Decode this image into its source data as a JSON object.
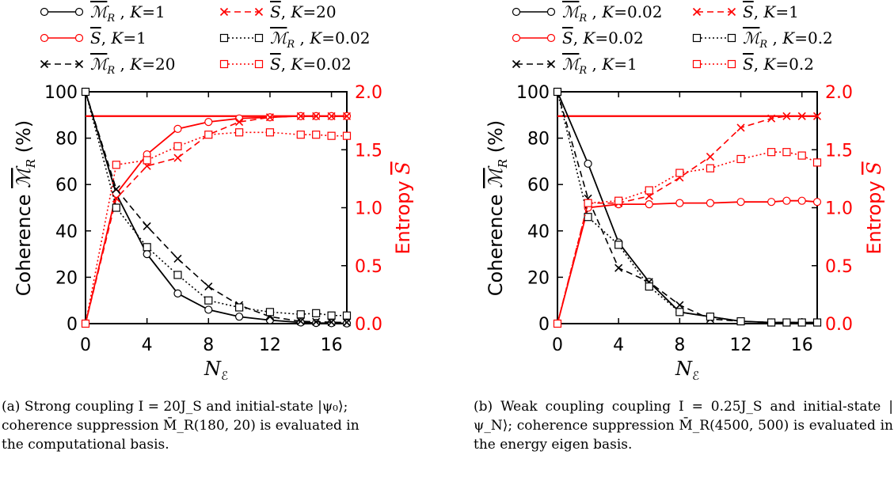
{
  "colors": {
    "black": "#000000",
    "red": "#ff0000"
  },
  "panels": [
    {
      "id": "a",
      "axes": {
        "xlabel": "N_ℰ",
        "ylabel_left_prefix": "Coherence ",
        "ylabel_left_symbol": "M̄_R",
        "ylabel_left_suffix": "  (%)",
        "ylabel_right_prefix": "Entropy ",
        "ylabel_right_symbol": "S̄",
        "xlim": [
          0,
          17
        ],
        "ylim_left": [
          0,
          100
        ],
        "ylim_right": [
          0,
          2.0
        ],
        "xticks": [
          "0",
          "4",
          "8",
          "12",
          "16"
        ],
        "yticks_left": [
          "0",
          "20",
          "40",
          "60",
          "80",
          "100"
        ],
        "yticks_right": [
          "0.0",
          "0.5",
          "1.0",
          "1.5",
          "2.0"
        ]
      },
      "legend": [
        {
          "symbol": "M̄",
          "sub": "R",
          "sep": ", ",
          "klabel": "K",
          "kval": "1"
        },
        {
          "symbol": "S̄",
          "sub": "",
          "sep": ", ",
          "klabel": "K",
          "kval": "1"
        },
        {
          "symbol": "M̄",
          "sub": "R",
          "sep": ", ",
          "klabel": "K",
          "kval": "20"
        },
        {
          "symbol": "S̄",
          "sub": "",
          "sep": ", ",
          "klabel": "K",
          "kval": "20"
        },
        {
          "symbol": "M̄",
          "sub": "R",
          "sep": ", ",
          "klabel": "K",
          "kval": "0.02"
        },
        {
          "symbol": "S̄",
          "sub": "",
          "sep": ", ",
          "klabel": "K",
          "kval": "0.02"
        }
      ],
      "caption": {
        "label": "(a)",
        "text": "Strong coupling I = 20J_S and initial-state |ψ₀⟩; coherence suppression M̄_R(180, 20) is evaluated in the computational basis."
      }
    },
    {
      "id": "b",
      "axes": {
        "xlabel": "N_ℰ",
        "ylabel_left_prefix": "Coherence ",
        "ylabel_left_symbol": "M̄_R",
        "ylabel_left_suffix": "  (%)",
        "ylabel_right_prefix": "Entropy ",
        "ylabel_right_symbol": "S̄",
        "xlim": [
          0,
          17
        ],
        "ylim_left": [
          0,
          100
        ],
        "ylim_right": [
          0,
          2.0
        ],
        "xticks": [
          "0",
          "4",
          "8",
          "12",
          "16"
        ],
        "yticks_left": [
          "0",
          "20",
          "40",
          "60",
          "80",
          "100"
        ],
        "yticks_right": [
          "0.0",
          "0.5",
          "1.0",
          "1.5",
          "2.0"
        ]
      },
      "legend": [
        {
          "symbol": "M̄",
          "sub": "R",
          "sep": ", ",
          "klabel": "K",
          "kval": "0.02"
        },
        {
          "symbol": "S̄",
          "sub": "",
          "sep": ", ",
          "klabel": "K",
          "kval": "0.02"
        },
        {
          "symbol": "M̄",
          "sub": "R",
          "sep": ", ",
          "klabel": "K",
          "kval": "1"
        },
        {
          "symbol": "S̄",
          "sub": "",
          "sep": ", ",
          "klabel": "K",
          "kval": "1"
        },
        {
          "symbol": "M̄",
          "sub": "R",
          "sep": ", ",
          "klabel": "K",
          "kval": "0.2"
        },
        {
          "symbol": "S̄",
          "sub": "",
          "sep": ", ",
          "klabel": "K",
          "kval": "0.2"
        }
      ],
      "caption": {
        "label": "(b)",
        "text": "Weak coupling coupling I = 0.25J_S and initial-state |ψ_N⟩; coherence suppression M̄_R(4500, 500) is evaluated in the energy eigen basis."
      }
    }
  ],
  "chart_data": [
    {
      "type": "line",
      "x": [
        0,
        2,
        4,
        6,
        8,
        10,
        12,
        14,
        15,
        16,
        17
      ],
      "series": [
        {
          "name": "M̄_R, K=1",
          "axis": "left",
          "color": "black",
          "dash": "solid",
          "marker": "circle",
          "values": [
            100,
            56,
            30,
            13,
            6,
            3,
            1.5,
            0.5,
            0.3,
            0.2,
            0.1
          ]
        },
        {
          "name": "S̄, K=1",
          "axis": "right",
          "color": "red",
          "dash": "solid",
          "marker": "circle",
          "values": [
            0,
            1.12,
            1.46,
            1.68,
            1.74,
            1.77,
            1.78,
            1.79,
            1.79,
            1.79,
            1.79
          ]
        },
        {
          "name": "M̄_R, K=20",
          "axis": "left",
          "color": "black",
          "dash": "dashed",
          "marker": "x",
          "values": [
            100,
            58,
            42,
            28,
            16,
            8,
            3,
            1,
            0.8,
            0.6,
            0.5
          ]
        },
        {
          "name": "S̄, K=20",
          "axis": "right",
          "color": "red",
          "dash": "dashed",
          "marker": "x",
          "values": [
            0,
            1.08,
            1.36,
            1.43,
            1.63,
            1.74,
            1.78,
            1.79,
            1.79,
            1.79,
            1.79
          ]
        },
        {
          "name": "M̄_R, K=0.02",
          "axis": "left",
          "color": "black",
          "dash": "dotted",
          "marker": "square",
          "values": [
            100,
            50,
            33,
            21,
            10,
            7,
            5,
            4,
            4.5,
            3.5,
            3.5
          ]
        },
        {
          "name": "S̄, K=0.02",
          "axis": "right",
          "color": "red",
          "dash": "dotted",
          "marker": "square",
          "values": [
            0,
            1.37,
            1.41,
            1.53,
            1.63,
            1.65,
            1.65,
            1.63,
            1.63,
            1.62,
            1.62
          ]
        }
      ],
      "reference_lines": [
        {
          "axis": "right",
          "y": 1.79,
          "color": "red"
        }
      ],
      "xlabel": "N_ℰ",
      "ylabel": "Coherence M̄_R (%)",
      "ylabel_right": "Entropy S̄",
      "xlim": [
        0,
        17
      ],
      "ylim": [
        0,
        100
      ],
      "ylim_right": [
        0,
        2.0
      ],
      "legend_placement": "top"
    },
    {
      "type": "line",
      "x": [
        0,
        2,
        4,
        6,
        8,
        10,
        12,
        14,
        15,
        16,
        17
      ],
      "series": [
        {
          "name": "M̄_R, K=0.02",
          "axis": "left",
          "color": "black",
          "dash": "solid",
          "marker": "circle",
          "values": [
            100,
            69,
            35,
            18,
            5,
            3,
            1,
            0.5,
            0.5,
            0.5,
            0.5
          ]
        },
        {
          "name": "S̄, K=0.02",
          "axis": "right",
          "color": "red",
          "dash": "solid",
          "marker": "circle",
          "values": [
            0,
            1.0,
            1.03,
            1.03,
            1.04,
            1.04,
            1.05,
            1.05,
            1.06,
            1.06,
            1.05
          ]
        },
        {
          "name": "M̄_R, K=1",
          "axis": "left",
          "color": "black",
          "dash": "dashed",
          "marker": "x",
          "values": [
            100,
            54,
            24,
            18,
            8,
            2,
            1,
            0.5,
            0.5,
            0.5,
            0.5
          ]
        },
        {
          "name": "S̄, K=1",
          "axis": "right",
          "color": "red",
          "dash": "dashed",
          "marker": "x",
          "values": [
            0,
            1.04,
            1.04,
            1.1,
            1.26,
            1.44,
            1.69,
            1.77,
            1.79,
            1.79,
            1.79
          ]
        },
        {
          "name": "M̄_R, K=0.2",
          "axis": "left",
          "color": "black",
          "dash": "dotted",
          "marker": "square",
          "values": [
            100,
            46,
            34,
            16,
            5,
            3,
            1,
            0.5,
            0.5,
            0.5,
            0.5
          ]
        },
        {
          "name": "S̄, K=0.2",
          "axis": "right",
          "color": "red",
          "dash": "dotted",
          "marker": "square",
          "values": [
            0,
            1.04,
            1.06,
            1.15,
            1.3,
            1.34,
            1.42,
            1.48,
            1.48,
            1.45,
            1.39
          ]
        }
      ],
      "reference_lines": [
        {
          "axis": "right",
          "y": 1.79,
          "color": "red"
        }
      ],
      "xlabel": "N_ℰ",
      "ylabel": "Coherence M̄_R (%)",
      "ylabel_right": "Entropy S̄",
      "xlim": [
        0,
        17
      ],
      "ylim": [
        0,
        100
      ],
      "ylim_right": [
        0,
        2.0
      ],
      "legend_placement": "top"
    }
  ]
}
